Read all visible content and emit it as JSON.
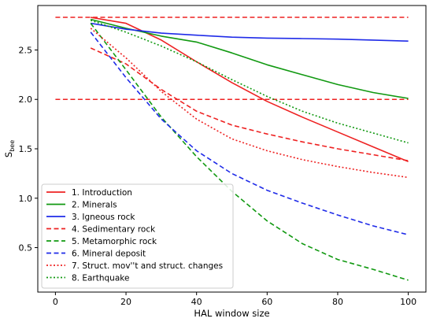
{
  "chart_data": {
    "type": "line",
    "xlabel": "HAL window size",
    "ylabel": "S",
    "ylabel_subscript": "bee",
    "xlim": [
      -5,
      105
    ],
    "ylim": [
      0.05,
      2.95
    ],
    "xticks": [
      0,
      20,
      40,
      60,
      80,
      100
    ],
    "yticks": [
      0.5,
      1.0,
      1.5,
      2.0,
      2.5
    ],
    "grid": false,
    "legend_position": "lower-left",
    "reference_lines": [
      {
        "y": 2.83,
        "x": [
          0,
          100
        ],
        "color": "#ee2222",
        "style": "dashed"
      },
      {
        "y": 2.0,
        "x": [
          0,
          100
        ],
        "color": "#ee2222",
        "style": "dashed"
      }
    ],
    "series": [
      {
        "name": "1. Introduction",
        "color": "#ee2222",
        "style": "solid",
        "x": [
          10,
          20,
          30,
          40,
          50,
          60,
          70,
          80,
          90,
          100
        ],
        "y": [
          2.83,
          2.77,
          2.6,
          2.38,
          2.17,
          1.98,
          1.82,
          1.67,
          1.52,
          1.37
        ]
      },
      {
        "name": "2. Minerals",
        "color": "#119911",
        "style": "solid",
        "x": [
          10,
          20,
          30,
          40,
          50,
          60,
          70,
          80,
          90,
          100
        ],
        "y": [
          2.81,
          2.72,
          2.64,
          2.58,
          2.47,
          2.35,
          2.25,
          2.15,
          2.07,
          2.01
        ]
      },
      {
        "name": "3. Igneous rock",
        "color": "#1f2be8",
        "style": "solid",
        "x": [
          10,
          20,
          30,
          40,
          50,
          60,
          70,
          80,
          90,
          100
        ],
        "y": [
          2.77,
          2.71,
          2.67,
          2.65,
          2.63,
          2.62,
          2.615,
          2.61,
          2.6,
          2.59
        ]
      },
      {
        "name": "4. Sedimentary rock",
        "color": "#ee2222",
        "style": "dashed",
        "x": [
          10,
          20,
          30,
          40,
          50,
          60,
          70,
          80,
          90,
          100
        ],
        "y": [
          2.52,
          2.36,
          2.1,
          1.88,
          1.74,
          1.65,
          1.57,
          1.5,
          1.44,
          1.38
        ]
      },
      {
        "name": "5. Metamorphic rock",
        "color": "#119911",
        "style": "dashed",
        "x": [
          10,
          20,
          30,
          40,
          50,
          60,
          70,
          80,
          90,
          100
        ],
        "y": [
          2.77,
          2.3,
          1.82,
          1.42,
          1.07,
          0.77,
          0.54,
          0.38,
          0.28,
          0.17
        ]
      },
      {
        "name": "6. Mineral deposit",
        "color": "#1f2be8",
        "style": "dashed",
        "x": [
          10,
          20,
          30,
          40,
          50,
          60,
          70,
          80,
          90,
          100
        ],
        "y": [
          2.68,
          2.22,
          1.8,
          1.48,
          1.25,
          1.08,
          0.95,
          0.83,
          0.72,
          0.63
        ]
      },
      {
        "name": "7. Struct. mov''t and struct. changes",
        "color": "#ee2222",
        "style": "dotted",
        "x": [
          10,
          20,
          30,
          40,
          50,
          60,
          70,
          80,
          90,
          100
        ],
        "y": [
          2.72,
          2.42,
          2.08,
          1.8,
          1.6,
          1.48,
          1.39,
          1.32,
          1.26,
          1.21
        ]
      },
      {
        "name": "8. Earthquake",
        "color": "#119911",
        "style": "dotted",
        "x": [
          10,
          20,
          30,
          40,
          50,
          60,
          70,
          80,
          90,
          100
        ],
        "y": [
          2.8,
          2.68,
          2.54,
          2.38,
          2.2,
          2.03,
          1.88,
          1.76,
          1.66,
          1.56
        ]
      }
    ]
  }
}
